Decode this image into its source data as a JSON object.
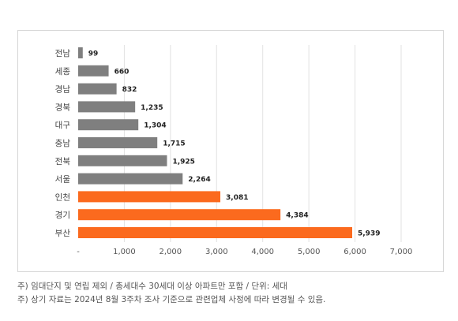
{
  "chart_data": {
    "type": "bar",
    "orientation": "horizontal",
    "categories": [
      "전남",
      "세종",
      "경남",
      "경북",
      "대구",
      "충남",
      "전북",
      "서울",
      "인천",
      "경기",
      "부산"
    ],
    "values": [
      99,
      660,
      832,
      1235,
      1304,
      1715,
      1925,
      2264,
      3081,
      4384,
      5939
    ],
    "value_labels": [
      "99",
      "660",
      "832",
      "1,235",
      "1,304",
      "1,715",
      "1,925",
      "2,264",
      "3,081",
      "4,384",
      "5,939"
    ],
    "xlim": [
      0,
      7000
    ],
    "x_ticks": [
      "-",
      "1,000",
      "2,000",
      "3,000",
      "4,000",
      "5,000",
      "6,000",
      "7,000"
    ],
    "grid": "vertical",
    "legend": "none",
    "colors": {
      "gray": "#7f7f7f",
      "highlight": "#fb6a1e"
    },
    "highlighted_categories": [
      "인천",
      "경기",
      "부산"
    ]
  },
  "notes": [
    "주) 임대단지 및 연립 제외 / 총세대수 30세대 이상 아파트만 포함 / 단위: 세대",
    "주) 상기 자료는 2024년 8월 3주차 조사 기준으로 관련업체 사정에 따라 변경될 수 있음."
  ]
}
